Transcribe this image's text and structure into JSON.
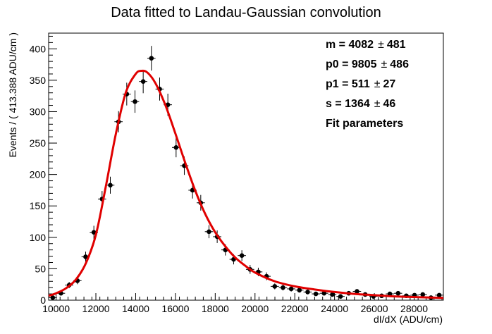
{
  "chart_data": {
    "type": "scatter",
    "title": "Data fitted to Landau-Gaussian convolution",
    "xlabel": "dI/dX (ADU/cm)",
    "ylabel": "Events / ( 413.388 ADU/cm )",
    "xlim": [
      9625,
      29470
    ],
    "ylim": [
      0,
      425
    ],
    "xticks": [
      10000,
      12000,
      14000,
      16000,
      18000,
      20000,
      22000,
      24000,
      26000,
      28000
    ],
    "xtick_labels": [
      "10000",
      "12000",
      "14000",
      "16000",
      "18000",
      "20000",
      "22000",
      "24000",
      "26000",
      "28000"
    ],
    "yticks": [
      0,
      50,
      100,
      150,
      200,
      250,
      300,
      350,
      400
    ],
    "ytick_labels": [
      "0",
      "50",
      "100",
      "150",
      "200",
      "250",
      "300",
      "350",
      "400"
    ],
    "bin_width": 413.388,
    "colors": {
      "data": "#000000",
      "fit": "#e00000"
    },
    "series": [
      {
        "kind": "points_with_errors",
        "x": [
          9832,
          10245,
          10659,
          11072,
          11485,
          11899,
          12312,
          12726,
          13139,
          13552,
          13966,
          14379,
          14792,
          15206,
          15619,
          16033,
          16446,
          16859,
          17273,
          17686,
          18099,
          18513,
          18926,
          19340,
          19753,
          20166,
          20580,
          20993,
          21406,
          21820,
          22233,
          22647,
          23060,
          23473,
          23887,
          24300,
          24713,
          25127,
          25540,
          25954,
          26367,
          26780,
          27194,
          27607,
          28020,
          28434,
          28847,
          29261
        ],
        "y": [
          4,
          11,
          24,
          31,
          69,
          108,
          161,
          183,
          284,
          328,
          316,
          348,
          385,
          336,
          311,
          243,
          214,
          175,
          155,
          109,
          101,
          80,
          65,
          71,
          49,
          45,
          38,
          22,
          20,
          18,
          16,
          13,
          10,
          11,
          9,
          6,
          11,
          14,
          9,
          6,
          7,
          10,
          11,
          7,
          8,
          9,
          4,
          8
        ]
      },
      {
        "kind": "fit_curve",
        "x": [
          9625,
          10000,
          10500,
          11000,
          11500,
          12000,
          12500,
          13000,
          13500,
          14000,
          14300,
          14600,
          15000,
          15500,
          16000,
          16500,
          17000,
          17500,
          18000,
          18500,
          19000,
          19500,
          20000,
          21000,
          22000,
          23000,
          24000,
          25000,
          26000,
          27000,
          28000,
          29000,
          29470
        ],
        "y": [
          7,
          11,
          19,
          33,
          59,
          104,
          181,
          264,
          330,
          360,
          365,
          362,
          345,
          310,
          265,
          218,
          174,
          137,
          108,
          86,
          68,
          55,
          44,
          30,
          22,
          17,
          13,
          10,
          8,
          6,
          5,
          4,
          3.5
        ]
      }
    ],
    "fit_parameters": {
      "heading": "Fit parameters",
      "rows": [
        {
          "label": "m = ",
          "value": "4082",
          "pm": "±",
          "err": "481"
        },
        {
          "label": "p0 = ",
          "value": "9805",
          "pm": "±",
          "err": "486"
        },
        {
          "label": "p1 = ",
          "value": "511",
          "pm": "±",
          "err": "27"
        },
        {
          "label": "s = ",
          "value": "1364",
          "pm": "±",
          "err": "46"
        }
      ]
    }
  }
}
